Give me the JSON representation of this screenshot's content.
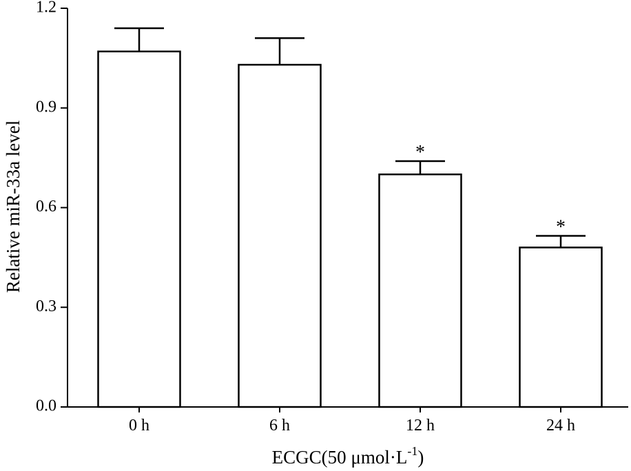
{
  "chart_data": {
    "type": "bar",
    "title": "",
    "xlabel": "ECGC(50 μmol·L",
    "xlabel_superscript": "-1",
    "xlabel_suffix": ")",
    "ylabel": "Relative miR-33a level",
    "ylim": [
      0,
      1.2
    ],
    "yticks": [
      "0.0",
      "0.3",
      "0.6",
      "0.9",
      "1.2"
    ],
    "categories": [
      "0 h",
      "6 h",
      "12 h",
      "24 h"
    ],
    "values": [
      1.07,
      1.03,
      0.7,
      0.48
    ],
    "error_upper": [
      0.07,
      0.08,
      0.04,
      0.035
    ],
    "annotations": [
      "",
      "",
      "*",
      "*"
    ],
    "grid": false,
    "bar_fill": "#ffffff",
    "bar_stroke": "#000000"
  }
}
